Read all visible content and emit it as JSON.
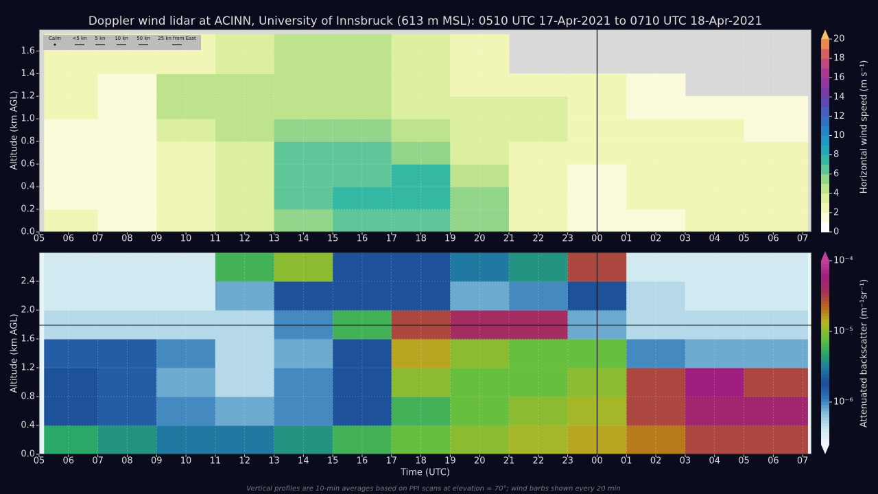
{
  "chart_data": [
    {
      "type": "heatmap",
      "title": "Doppler wind lidar at ACINN, University of Innsbruck (613 m MSL): 0510 UTC 17-Apr-2021 to 0710 UTC 18-Apr-2021",
      "ylabel": "Altitude (km AGL)",
      "colorbar_label": "Horizontal wind speed (m s⁻¹)",
      "barb_legend": [
        "Calm",
        "<5 kn",
        "5 kn",
        "10 kn",
        "50 kn",
        "25 kn from East"
      ],
      "xlim": [
        5,
        31.3
      ],
      "ylim": [
        0,
        1.79
      ],
      "xticks": [
        {
          "value": 5,
          "label": "05"
        },
        {
          "value": 6,
          "label": "06"
        },
        {
          "value": 7,
          "label": "07"
        },
        {
          "value": 8,
          "label": "08"
        },
        {
          "value": 9,
          "label": "09"
        },
        10,
        11,
        12,
        13,
        14,
        15,
        16,
        17,
        18,
        19,
        20,
        21,
        22,
        23,
        {
          "value": 24,
          "label": "00"
        },
        {
          "value": 25,
          "label": "01"
        },
        {
          "value": 26,
          "label": "02"
        },
        {
          "value": 27,
          "label": "03"
        },
        {
          "value": 28,
          "label": "04"
        },
        {
          "value": 29,
          "label": "05"
        },
        {
          "value": 30,
          "label": "06"
        },
        {
          "value": 31,
          "label": "07"
        }
      ],
      "yticks": [
        {
          "value": 0,
          "label": "0.0"
        },
        0.2,
        0.4,
        0.6,
        0.8,
        {
          "value": 1,
          "label": "1.0"
        },
        1.2,
        1.4,
        1.6
      ],
      "day_boundary": 24,
      "x_edges": [
        5.17,
        7,
        9,
        11,
        13,
        15,
        17,
        19,
        21,
        23,
        25,
        27,
        29,
        31.17
      ],
      "y_edges": [
        0,
        0.2,
        0.4,
        0.6,
        0.8,
        1.0,
        1.2,
        1.4,
        1.75
      ],
      "z": [
        [
          2,
          1,
          2,
          3,
          5,
          6,
          6,
          5,
          2,
          1,
          1,
          2,
          2
        ],
        [
          1,
          1,
          2,
          3,
          6,
          7,
          7,
          5,
          2,
          1,
          2,
          2,
          2
        ],
        [
          1,
          1,
          2,
          3,
          6,
          6,
          7,
          4,
          2,
          1,
          2,
          2,
          2
        ],
        [
          1,
          1,
          2,
          3,
          6,
          6,
          5,
          3,
          2,
          2,
          2,
          2,
          2
        ],
        [
          1,
          1,
          3,
          4,
          5,
          5,
          4,
          3,
          3,
          2,
          2,
          2,
          1
        ],
        [
          2,
          1,
          4,
          4,
          4,
          4,
          3,
          3,
          3,
          2,
          1,
          1,
          1
        ],
        [
          2,
          1,
          4,
          4,
          4,
          4,
          3,
          2,
          2,
          2,
          1,
          null,
          null
        ],
        [
          2,
          2,
          2,
          3,
          4,
          4,
          3,
          2,
          null,
          null,
          null,
          null,
          null
        ]
      ],
      "clim": [
        0,
        20
      ],
      "cticks": [
        0,
        2,
        4,
        6,
        8,
        10,
        12,
        14,
        16,
        18,
        20
      ],
      "log_scale": false,
      "missing_color": "#d9d9d9",
      "colormap": [
        "#ffffff",
        "#fbfbdc",
        "#f1f6b6",
        "#dcefa0",
        "#bde38d",
        "#94d58c",
        "#5ec698",
        "#34b8a4",
        "#22a8b8",
        "#1e98c4",
        "#2585c8",
        "#3370c4",
        "#4a5cbc",
        "#6048b0",
        "#7a3aa8",
        "#9436a0",
        "#aa3a90",
        "#c04a7c",
        "#d66060",
        "#ea8a52",
        "#f6c068"
      ]
    },
    {
      "type": "heatmap",
      "ylabel": "Altitude (km AGL)",
      "xlabel": "Time (UTC)",
      "colorbar_label": "Attenuated backscatter (m⁻¹sr⁻¹)",
      "note": "Vertical profiles are 10-min averages based on PPI scans at elevation = 70°; wind barbs shown every 20 min",
      "xlim": [
        5,
        31.3
      ],
      "ylim": [
        0,
        2.8
      ],
      "xticks": [
        {
          "value": 5,
          "label": "05"
        },
        {
          "value": 6,
          "label": "06"
        },
        {
          "value": 7,
          "label": "07"
        },
        {
          "value": 8,
          "label": "08"
        },
        {
          "value": 9,
          "label": "09"
        },
        10,
        11,
        12,
        13,
        14,
        15,
        16,
        17,
        18,
        19,
        20,
        21,
        22,
        23,
        {
          "value": 24,
          "label": "00"
        },
        {
          "value": 25,
          "label": "01"
        },
        {
          "value": 26,
          "label": "02"
        },
        {
          "value": 27,
          "label": "03"
        },
        {
          "value": 28,
          "label": "04"
        },
        {
          "value": 29,
          "label": "05"
        },
        {
          "value": 30,
          "label": "06"
        },
        {
          "value": 31,
          "label": "07"
        }
      ],
      "yticks": [
        {
          "value": 0,
          "label": "0.0"
        },
        0.4,
        0.8,
        1.2,
        1.6,
        {
          "value": 2,
          "label": "2.0"
        },
        2.4
      ],
      "day_boundary": 24,
      "x_edges": [
        5.17,
        7,
        9,
        11,
        13,
        15,
        17,
        19,
        21,
        23,
        25,
        27,
        29,
        31.17
      ],
      "y_edges": [
        0,
        0.4,
        0.8,
        1.2,
        1.6,
        2.0,
        2.4,
        2.8
      ],
      "z": [
        [
          5e-06,
          4e-06,
          3e-06,
          3e-06,
          4e-06,
          6e-06,
          8e-06,
          1e-05,
          1.2e-05,
          1.5e-05,
          2e-05,
          3e-05,
          3e-05
        ],
        [
          2e-06,
          1.5e-06,
          1e-06,
          8e-07,
          1e-06,
          2e-06,
          6e-06,
          8e-06,
          1e-05,
          1.2e-05,
          3e-05,
          5e-05,
          5e-05
        ],
        [
          2e-06,
          1.5e-06,
          8e-07,
          5e-07,
          1e-06,
          2e-06,
          1e-05,
          8e-06,
          8e-06,
          1e-05,
          3e-05,
          6e-05,
          3e-05
        ],
        [
          1.5e-06,
          1.5e-06,
          1e-06,
          5e-07,
          8e-07,
          2e-06,
          1.5e-05,
          1e-05,
          8e-06,
          8e-06,
          1e-06,
          8e-07,
          8e-07
        ],
        [
          5e-07,
          5e-07,
          5e-07,
          5e-07,
          1e-06,
          6e-06,
          3e-05,
          4e-05,
          4e-05,
          8e-07,
          5e-07,
          5e-07,
          5e-07
        ],
        [
          4e-07,
          4e-07,
          4e-07,
          8e-07,
          2e-06,
          2e-06,
          2e-06,
          8e-07,
          1e-06,
          2e-06,
          5e-07,
          4e-07,
          4e-07
        ],
        [
          4e-07,
          4e-07,
          4e-07,
          6e-06,
          1e-05,
          2e-06,
          2e-06,
          3e-06,
          4e-06,
          3e-05,
          4e-07,
          4e-07,
          4e-07
        ]
      ],
      "clim": [
        2.5e-07,
        0.0001
      ],
      "cticks": [
        {
          "value": 1e-06,
          "label": "10⁻⁶"
        },
        {
          "value": 1e-05,
          "label": "10⁻⁵"
        },
        {
          "value": 0.0001,
          "label": "10⁻⁴"
        }
      ],
      "log_scale": true,
      "missing_color": "#e8f4f8",
      "colormap": [
        "#f2f8fa",
        "#cfe8f0",
        "#8cc2dc",
        "#2f78b8",
        "#1d4a9a",
        "#1f7aa0",
        "#2aa868",
        "#6cc03a",
        "#b8b424",
        "#b86a18",
        "#a4305a",
        "#a01e7e",
        "#c0409a"
      ]
    }
  ]
}
